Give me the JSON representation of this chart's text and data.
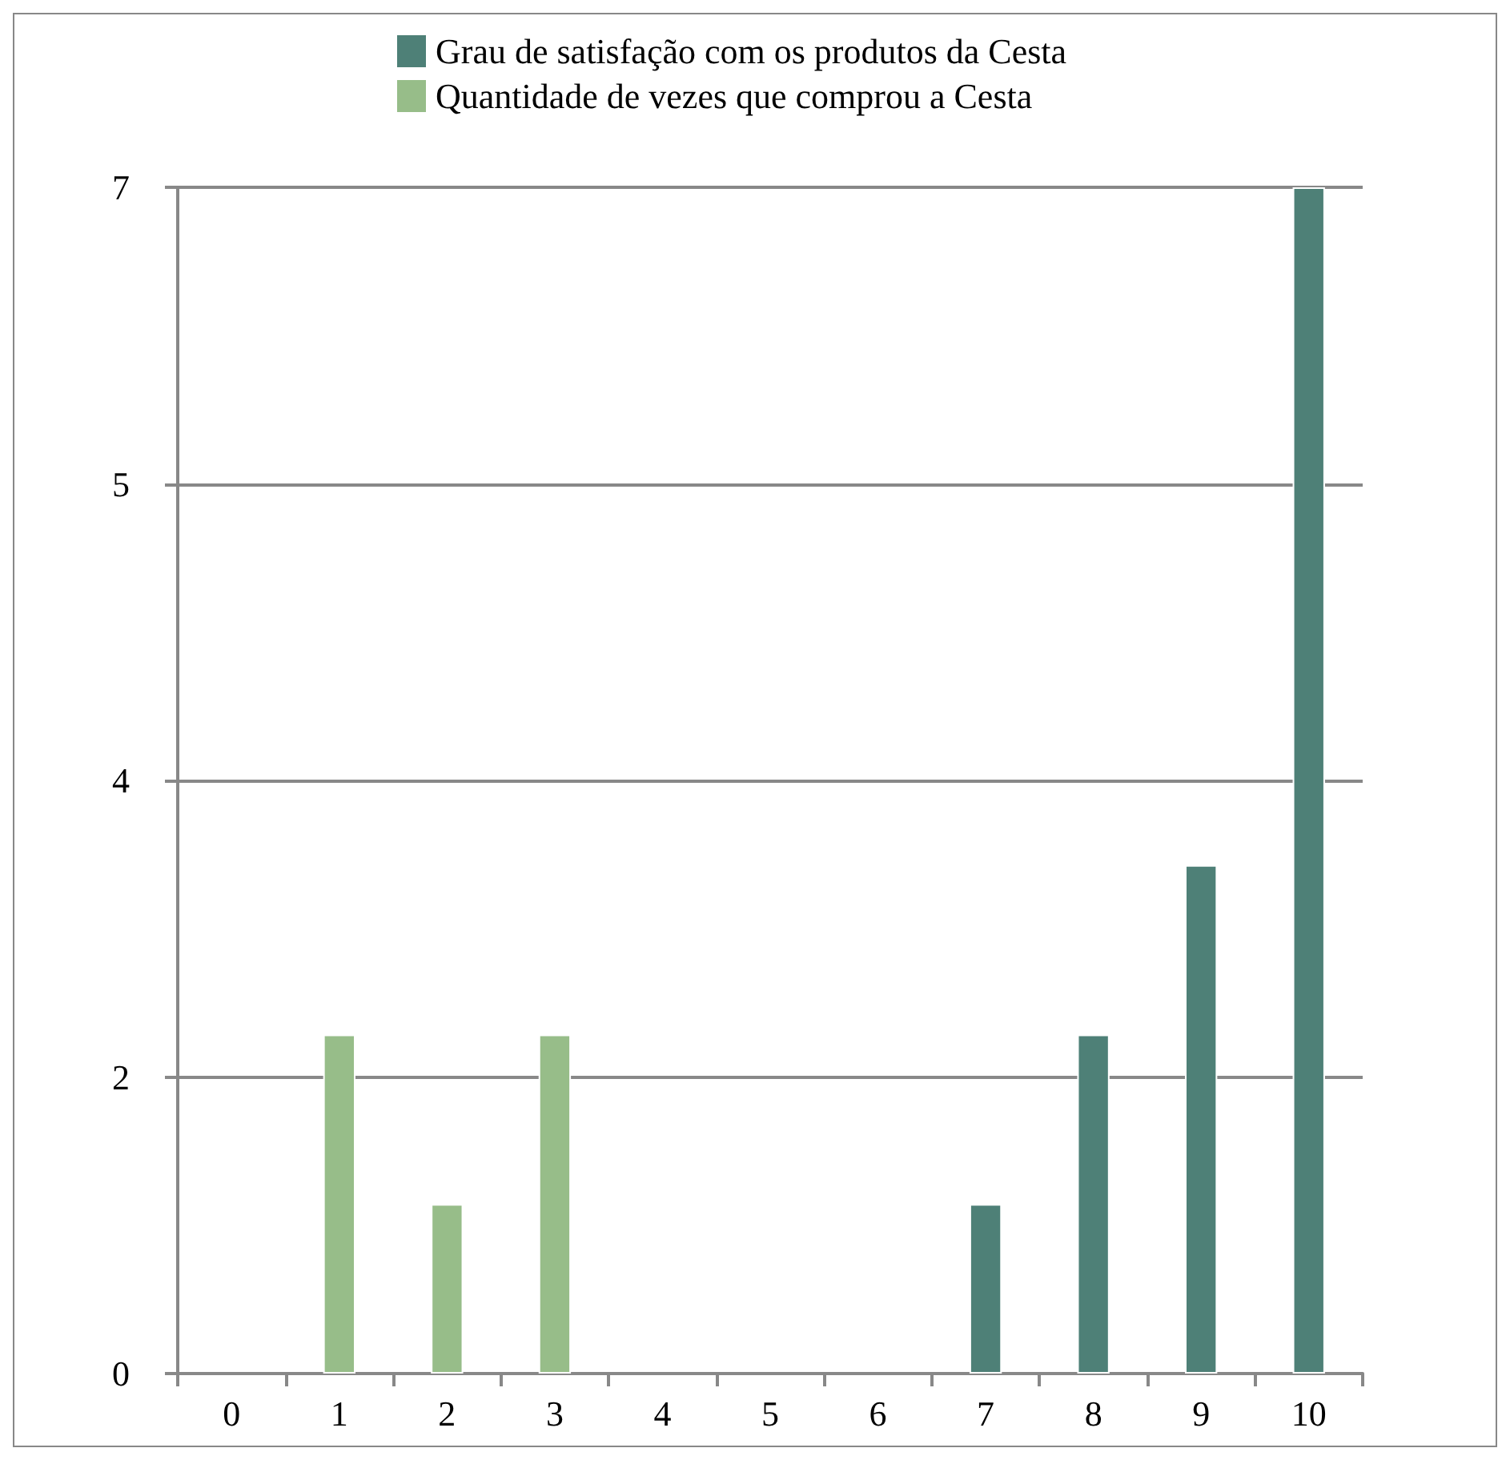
{
  "chart_data": {
    "type": "bar",
    "categories": [
      "0",
      "1",
      "2",
      "3",
      "4",
      "5",
      "6",
      "7",
      "8",
      "9",
      "10"
    ],
    "series": [
      {
        "name": "Grau de satisfação com os produtos da Cesta",
        "color": "#4e8077",
        "values": [
          null,
          null,
          null,
          null,
          null,
          null,
          null,
          1,
          2,
          3,
          7
        ]
      },
      {
        "name": "Quantidade de vezes que comprou a Cesta",
        "color": "#97bd89",
        "values": [
          null,
          2,
          1,
          2,
          null,
          null,
          null,
          null,
          null,
          null,
          null
        ]
      }
    ],
    "ylim": [
      0,
      7
    ],
    "yticks": [
      0,
      {
        "value": 1.75,
        "label": "2"
      },
      {
        "value": 3.5,
        "label": "4"
      },
      {
        "value": 5.25,
        "label": "5"
      },
      7
    ],
    "grid": "y",
    "legend": "top"
  }
}
